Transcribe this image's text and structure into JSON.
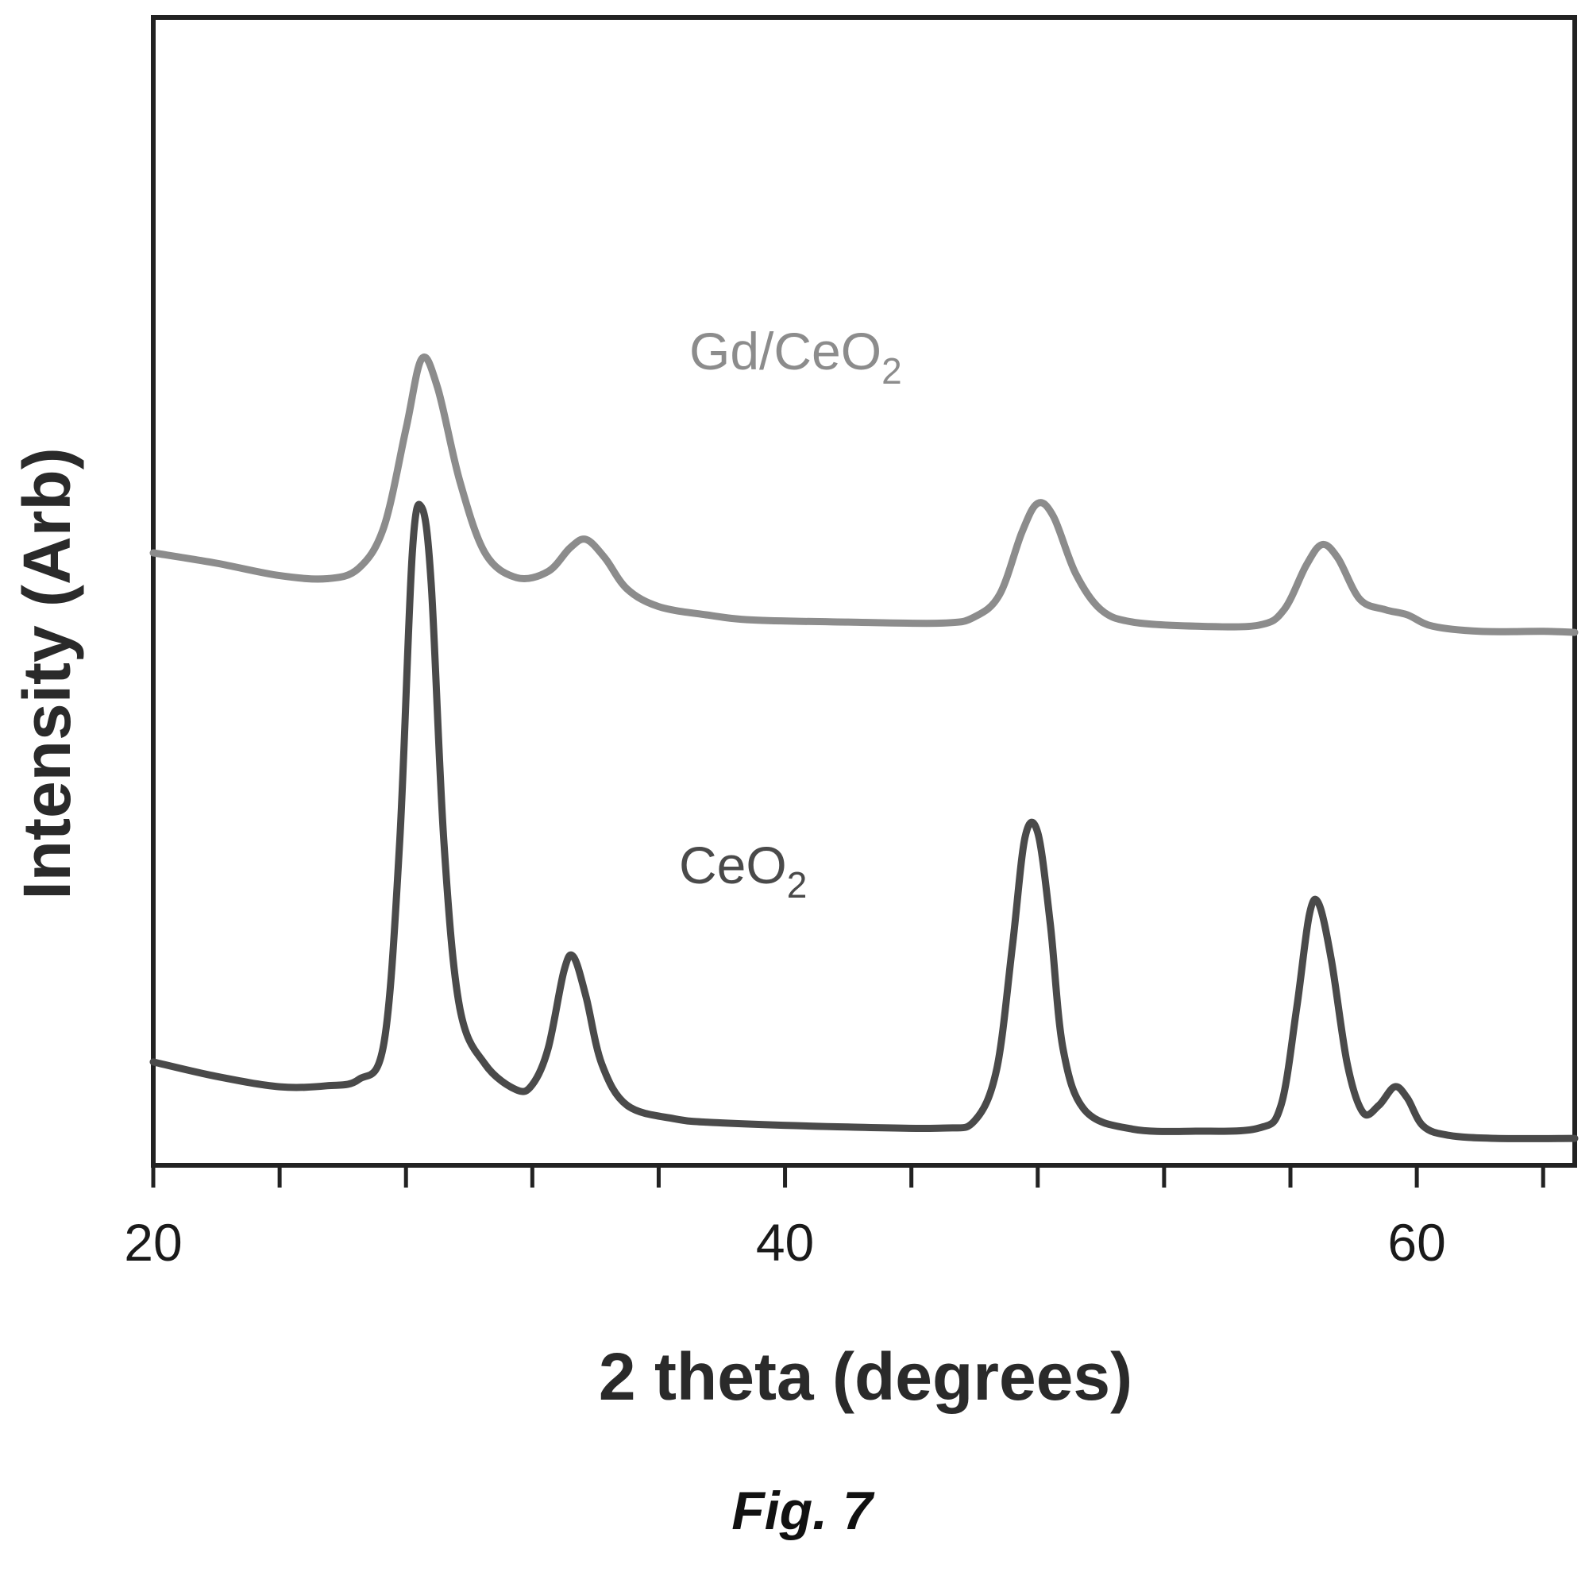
{
  "chart_data": {
    "type": "line",
    "title": "",
    "xlabel": "2 theta (degrees)",
    "ylabel": "Intensity (Arb)",
    "xlim": [
      20,
      65
    ],
    "ylim": [
      0,
      100
    ],
    "x_tick_values": [
      20,
      40,
      60
    ],
    "x_tick_labels": [
      "20",
      "40",
      "60"
    ],
    "x_minor_ticks": [
      24,
      28,
      32,
      36,
      44,
      48,
      52,
      56,
      64
    ],
    "grid": false,
    "legend": "none",
    "series": [
      {
        "name": "Gd/CeO2",
        "label_main": "Gd/CeO",
        "label_sub": "2",
        "color": "#8c8c8c",
        "points": [
          [
            20,
            58.0
          ],
          [
            22,
            57.0
          ],
          [
            24,
            55.8
          ],
          [
            25.5,
            55.5
          ],
          [
            26.5,
            56.5
          ],
          [
            27.3,
            60.5
          ],
          [
            28.0,
            70.0
          ],
          [
            28.5,
            76.8
          ],
          [
            29.0,
            74.0
          ],
          [
            29.7,
            65.0
          ],
          [
            30.5,
            58.0
          ],
          [
            31.5,
            55.6
          ],
          [
            32.5,
            56.2
          ],
          [
            33.2,
            58.5
          ],
          [
            33.7,
            59.3
          ],
          [
            34.3,
            57.5
          ],
          [
            35.0,
            54.5
          ],
          [
            36.0,
            52.8
          ],
          [
            37.5,
            52.0
          ],
          [
            39.0,
            51.5
          ],
          [
            42.0,
            51.3
          ],
          [
            45.0,
            51.2
          ],
          [
            46.0,
            51.8
          ],
          [
            46.8,
            54.0
          ],
          [
            47.5,
            60.0
          ],
          [
            48.0,
            62.8
          ],
          [
            48.5,
            61.5
          ],
          [
            49.2,
            56.0
          ],
          [
            50.0,
            52.5
          ],
          [
            51.0,
            51.3
          ],
          [
            53.0,
            50.9
          ],
          [
            55.0,
            51.0
          ],
          [
            55.8,
            52.5
          ],
          [
            56.5,
            56.8
          ],
          [
            57.0,
            58.8
          ],
          [
            57.5,
            57.5
          ],
          [
            58.2,
            53.5
          ],
          [
            59.0,
            52.5
          ],
          [
            59.7,
            52.0
          ],
          [
            60.5,
            50.9
          ],
          [
            62.0,
            50.4
          ],
          [
            64.0,
            50.4
          ],
          [
            65,
            50.3
          ]
        ]
      },
      {
        "name": "CeO2",
        "label_main": "CeO",
        "label_sub": "2",
        "color": "#4a4a4a",
        "points": [
          [
            20,
            8.7
          ],
          [
            22,
            7.3
          ],
          [
            24,
            6.3
          ],
          [
            25.5,
            6.4
          ],
          [
            26.5,
            7.0
          ],
          [
            27.3,
            10.5
          ],
          [
            27.8,
            30.0
          ],
          [
            28.2,
            58.0
          ],
          [
            28.5,
            62.4
          ],
          [
            28.8,
            55.0
          ],
          [
            29.2,
            30.0
          ],
          [
            29.7,
            14.0
          ],
          [
            30.5,
            8.5
          ],
          [
            31.5,
            6.0
          ],
          [
            32.0,
            6.5
          ],
          [
            32.5,
            10.0
          ],
          [
            33.0,
            17.5
          ],
          [
            33.3,
            18.9
          ],
          [
            33.7,
            15.0
          ],
          [
            34.2,
            8.5
          ],
          [
            35.0,
            4.5
          ],
          [
            36.5,
            3.2
          ],
          [
            38.0,
            2.8
          ],
          [
            42.0,
            2.4
          ],
          [
            45.0,
            2.3
          ],
          [
            46.0,
            3.0
          ],
          [
            46.7,
            8.0
          ],
          [
            47.2,
            20.0
          ],
          [
            47.6,
            30.5
          ],
          [
            48.0,
            30.9
          ],
          [
            48.4,
            22.0
          ],
          [
            48.8,
            10.0
          ],
          [
            49.5,
            4.0
          ],
          [
            51.0,
            2.2
          ],
          [
            53.0,
            2.0
          ],
          [
            55.0,
            2.3
          ],
          [
            55.7,
            4.5
          ],
          [
            56.2,
            14.0
          ],
          [
            56.6,
            23.0
          ],
          [
            56.9,
            24.0
          ],
          [
            57.3,
            18.5
          ],
          [
            57.8,
            8.5
          ],
          [
            58.3,
            3.8
          ],
          [
            58.8,
            4.5
          ],
          [
            59.3,
            6.3
          ],
          [
            59.7,
            5.2
          ],
          [
            60.2,
            2.5
          ],
          [
            61.0,
            1.6
          ],
          [
            62.5,
            1.3
          ],
          [
            65,
            1.3
          ]
        ]
      }
    ]
  },
  "caption": "Fig. 7"
}
